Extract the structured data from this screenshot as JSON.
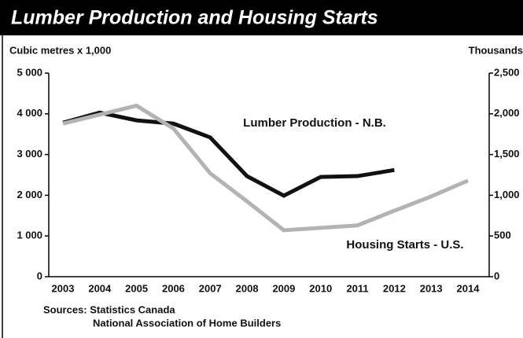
{
  "chart_data": {
    "type": "line",
    "title": "Lumber Production and Housing Starts",
    "y_label": "Cubic metres x 1,000",
    "y2_label": "Thousands",
    "categories": [
      "2003",
      "2004",
      "2005",
      "2006",
      "2007",
      "2008",
      "2009",
      "2010",
      "2011",
      "2012",
      "2013",
      "2014"
    ],
    "series": [
      {
        "name": "Lumber Production - N.B.",
        "color": "#111111",
        "values": [
          3780,
          4030,
          3840,
          3760,
          3420,
          2470,
          1990,
          2450,
          2470,
          2620,
          null,
          null
        ]
      },
      {
        "name": "Housing Starts - U.S.",
        "color": "#b3b3b3",
        "axis": "y2",
        "values": [
          1880,
          1990,
          2100,
          1820,
          1270,
          925,
          570,
          600,
          630,
          810,
          985,
          1180
        ]
      }
    ],
    "ylim": [
      0,
      5000
    ],
    "yticks": [
      0,
      {
        "value": 1000,
        "label": "1 000"
      },
      {
        "value": 2000,
        "label": "2 000"
      },
      {
        "value": 3000,
        "label": "3 000"
      },
      {
        "value": 4000,
        "label": "4 000"
      },
      {
        "value": 5000,
        "label": "5 000"
      }
    ],
    "y2lim": [
      0,
      2500
    ],
    "y2ticks": [
      0,
      500,
      {
        "value": 1000,
        "label": "1,000"
      },
      {
        "value": 1500,
        "label": "1,500"
      },
      {
        "value": 2000,
        "label": "2,000"
      },
      {
        "value": 2500,
        "label": "2,500"
      }
    ],
    "sources": [
      "Sources: Statistics Canada",
      "National Association of Home Builders"
    ]
  }
}
